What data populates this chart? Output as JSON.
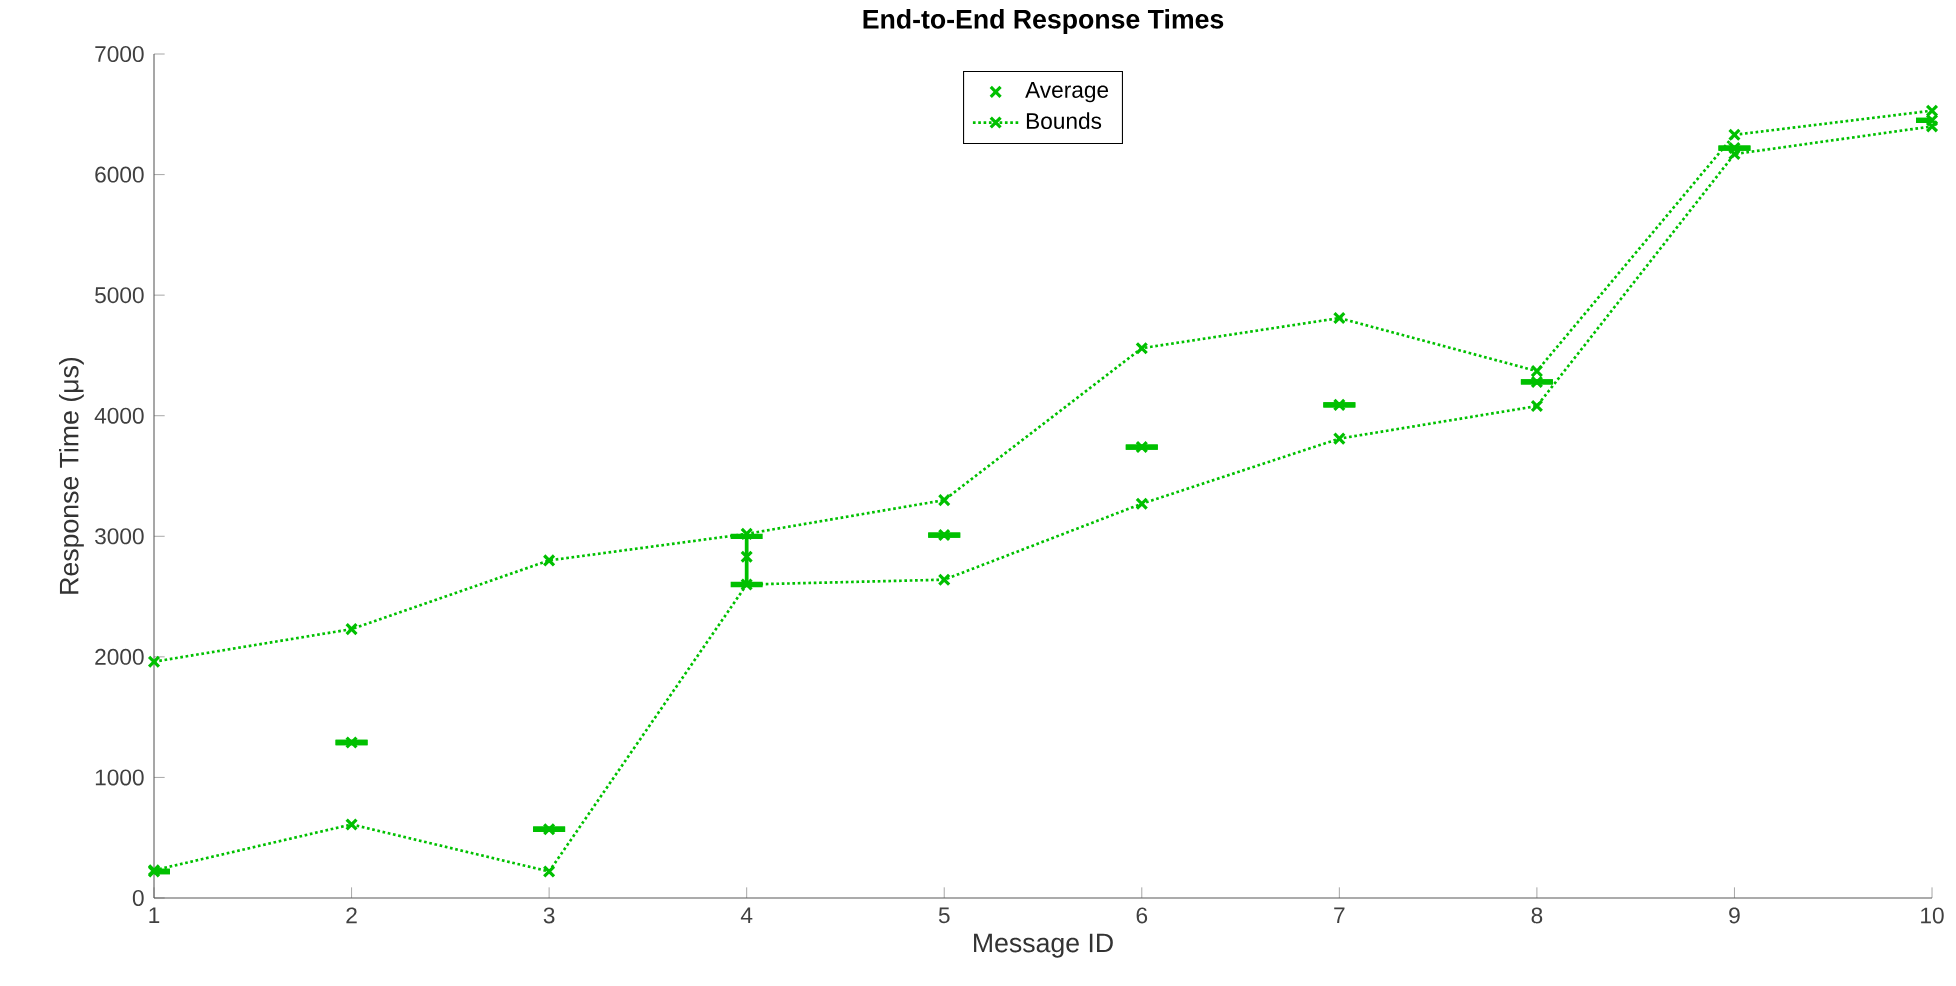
{
  "chart_data": {
    "type": "line",
    "title": "End-to-End Response Times",
    "xlabel": "Message ID",
    "ylabel": "Response Time (μs)",
    "x": [
      1,
      2,
      3,
      4,
      5,
      6,
      7,
      8,
      9,
      10
    ],
    "xlim": [
      1,
      10
    ],
    "xticks": [
      1,
      2,
      3,
      4,
      5,
      6,
      7,
      8,
      9,
      10
    ],
    "ylim": [
      0,
      7000
    ],
    "yticks": [
      0,
      1000,
      2000,
      3000,
      4000,
      5000,
      6000,
      7000
    ],
    "marker": "cross",
    "legend": "top",
    "grid": false,
    "series": [
      {
        "name": "Average",
        "type": "scatter",
        "color": "#00c000",
        "values": [
          220,
          1290,
          570,
          2830,
          3010,
          3740,
          4090,
          4280,
          6220,
          6450
        ],
        "errors": [
          0,
          0,
          0,
          [
            2600,
            3000
          ],
          0,
          0,
          0,
          0,
          0,
          0
        ]
      },
      {
        "name": "Bounds",
        "line_style": "dotted",
        "color": "#00c000",
        "values": [
          230,
          610,
          220,
          2600,
          2640,
          3270,
          3810,
          4080,
          6170,
          6400
        ]
      },
      {
        "line_style": "dotted",
        "color": "#00c000",
        "values": [
          1960,
          2230,
          2800,
          3020,
          3300,
          4560,
          4810,
          4370,
          6330,
          6530
        ]
      }
    ]
  }
}
